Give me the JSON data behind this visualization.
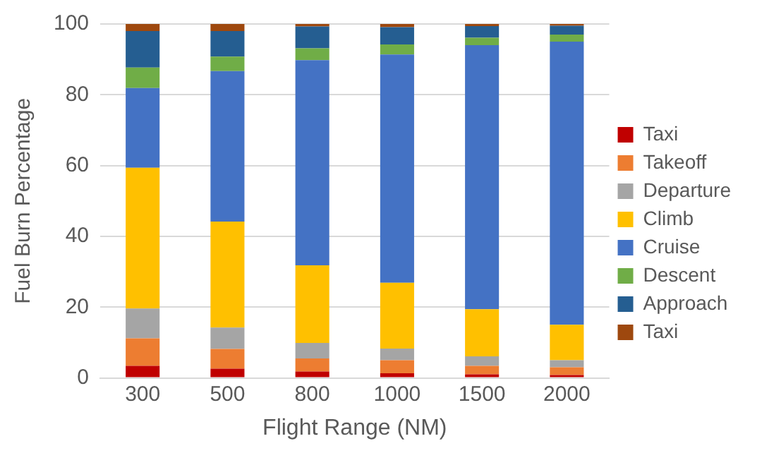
{
  "chart_data": {
    "type": "bar",
    "stacked": true,
    "xlabel": "Flight Range (NM)",
    "ylabel": "Fuel Burn Percentage",
    "categories": [
      "300",
      "500",
      "800",
      "1000",
      "1500",
      "2000"
    ],
    "series": [
      {
        "name": "Taxi",
        "color": "#c00000",
        "values": [
          3.4,
          2.6,
          1.8,
          1.3,
          1.0,
          0.8
        ]
      },
      {
        "name": "Takeoff",
        "color": "#ed7d31",
        "values": [
          7.8,
          5.6,
          3.7,
          3.7,
          2.4,
          2.2
        ]
      },
      {
        "name": "Departure",
        "color": "#a5a5a5",
        "values": [
          8.4,
          6.0,
          4.4,
          3.3,
          2.7,
          2.0
        ]
      },
      {
        "name": "Climb",
        "color": "#ffc000",
        "values": [
          39.8,
          30.0,
          21.9,
          18.6,
          13.3,
          10.0
        ]
      },
      {
        "name": "Cruise",
        "color": "#4472c4",
        "values": [
          22.5,
          42.5,
          58.0,
          64.5,
          74.6,
          80.0
        ]
      },
      {
        "name": "Descent",
        "color": "#70ad47",
        "values": [
          5.8,
          4.1,
          3.3,
          2.8,
          2.1,
          2.0
        ]
      },
      {
        "name": "Approach",
        "color": "#255e91",
        "values": [
          10.3,
          7.2,
          6.2,
          4.9,
          3.3,
          2.5
        ]
      },
      {
        "name": "Taxi",
        "color": "#9e480e",
        "values": [
          2.0,
          2.0,
          0.7,
          0.9,
          0.6,
          0.5
        ]
      }
    ],
    "ylim": [
      0,
      100
    ],
    "yticks": [
      0,
      20,
      40,
      60,
      80,
      100
    ],
    "grid": "y",
    "legend": "right"
  }
}
